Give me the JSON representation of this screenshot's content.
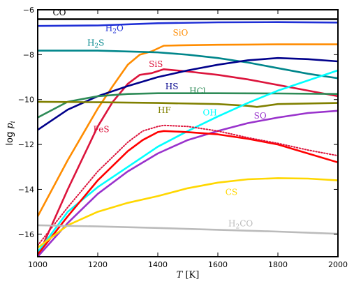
{
  "chart_data": {
    "type": "line",
    "xlabel": "T [K]",
    "ylabel": "log p_i",
    "xlim": [
      1000,
      2000
    ],
    "ylim": [
      -17,
      -6
    ],
    "grid": false,
    "x_ticks": [
      "1000",
      "1200",
      "1400",
      "1600",
      "1800",
      "2000"
    ],
    "y_ticks": [
      "−16",
      "−14",
      "−12",
      "−10",
      "−8",
      "−6"
    ],
    "series": [
      {
        "name": "CO",
        "color": "#000000",
        "style": "solid",
        "x": [
          1000,
          2000
        ],
        "values": [
          -6.42,
          -6.42
        ]
      },
      {
        "name": "H2O",
        "color": "#1f2fd6",
        "style": "solid",
        "x": [
          1000,
          1200,
          1400,
          1600,
          1800,
          2000
        ],
        "values": [
          -6.72,
          -6.7,
          -6.6,
          -6.56,
          -6.55,
          -6.57
        ]
      },
      {
        "name": "SiO",
        "color": "#ff8c00",
        "style": "solid",
        "x": [
          1000,
          1100,
          1200,
          1250,
          1300,
          1340,
          1380,
          1420,
          1500,
          1600,
          1700,
          1800,
          1900,
          2000
        ],
        "values": [
          -15.2,
          -12.7,
          -10.4,
          -9.4,
          -8.45,
          -8.0,
          -7.85,
          -7.6,
          -7.58,
          -7.56,
          -7.55,
          -7.54,
          -7.54,
          -7.54
        ]
      },
      {
        "name": "H2S",
        "color": "#00868b",
        "style": "solid",
        "x": [
          1000,
          1200,
          1400,
          1500,
          1600,
          1700,
          1800,
          1900,
          2000
        ],
        "values": [
          -7.82,
          -7.82,
          -7.9,
          -8.0,
          -8.15,
          -8.35,
          -8.6,
          -8.85,
          -9.05
        ]
      },
      {
        "name": "SiS",
        "color": "#dc143c",
        "style": "solid",
        "x": [
          1000,
          1100,
          1200,
          1250,
          1300,
          1340,
          1380,
          1420,
          1500,
          1600,
          1700,
          1800,
          1900,
          2000
        ],
        "values": [
          -17.0,
          -14.0,
          -11.2,
          -10.1,
          -9.3,
          -8.9,
          -8.82,
          -8.65,
          -8.75,
          -8.9,
          -9.1,
          -9.35,
          -9.6,
          -9.85
        ]
      },
      {
        "name": "HS",
        "color": "#00008b",
        "style": "solid",
        "x": [
          1000,
          1100,
          1200,
          1300,
          1400,
          1500,
          1600,
          1700,
          1800,
          1900,
          2000
        ],
        "values": [
          -11.35,
          -10.45,
          -9.85,
          -9.4,
          -9.0,
          -8.7,
          -8.45,
          -8.25,
          -8.15,
          -8.2,
          -8.3
        ]
      },
      {
        "name": "HCl",
        "color": "#2e8b57",
        "style": "solid",
        "x": [
          1000,
          1100,
          1200,
          1300,
          1400,
          1600,
          1800,
          2000
        ],
        "values": [
          -10.8,
          -10.1,
          -9.85,
          -9.75,
          -9.72,
          -9.72,
          -9.73,
          -9.75
        ]
      },
      {
        "name": "HF",
        "color": "#808000",
        "style": "solid",
        "x": [
          1000,
          1200,
          1400,
          1600,
          1700,
          1730,
          1800,
          2000
        ],
        "values": [
          -10.1,
          -10.12,
          -10.15,
          -10.2,
          -10.28,
          -10.33,
          -10.2,
          -10.15
        ]
      },
      {
        "name": "OH",
        "color": "#00ffff",
        "style": "solid",
        "x": [
          1000,
          1100,
          1200,
          1300,
          1400,
          1500,
          1600,
          1700,
          1800,
          1900,
          2000
        ],
        "values": [
          -16.8,
          -15.0,
          -13.9,
          -13.0,
          -12.1,
          -11.4,
          -10.75,
          -10.15,
          -9.6,
          -9.15,
          -8.7
        ]
      },
      {
        "name": "SO",
        "color": "#9932cc",
        "style": "solid",
        "x": [
          1000,
          1100,
          1200,
          1300,
          1400,
          1500,
          1600,
          1700,
          1800,
          1900,
          2000
        ],
        "values": [
          -17.0,
          -15.5,
          -14.2,
          -13.2,
          -12.4,
          -11.8,
          -11.4,
          -11.05,
          -10.8,
          -10.6,
          -10.5
        ]
      },
      {
        "name": "FeS",
        "color": "#ff0000",
        "style": "solid",
        "x": [
          1000,
          1100,
          1200,
          1300,
          1350,
          1400,
          1420,
          1500,
          1600,
          1700,
          1800,
          1900,
          2000
        ],
        "values": [
          -16.9,
          -15.2,
          -13.6,
          -12.3,
          -11.8,
          -11.45,
          -11.4,
          -11.45,
          -11.55,
          -11.75,
          -12.0,
          -12.4,
          -12.8
        ]
      },
      {
        "name": "FeS (dotted)",
        "color": "#dc143c",
        "style": "dotted",
        "x": [
          1000,
          1100,
          1200,
          1300,
          1350,
          1400,
          1420,
          1500,
          1600,
          1700,
          1800,
          1900,
          2000
        ],
        "values": [
          -16.5,
          -14.8,
          -13.2,
          -11.9,
          -11.4,
          -11.2,
          -11.15,
          -11.2,
          -11.4,
          -11.7,
          -11.95,
          -12.25,
          -12.5
        ]
      },
      {
        "name": "CS",
        "color": "#ffd700",
        "style": "solid",
        "x": [
          1000,
          1100,
          1200,
          1300,
          1400,
          1500,
          1600,
          1700,
          1800,
          1900,
          2000
        ],
        "values": [
          -16.6,
          -15.6,
          -15.0,
          -14.6,
          -14.3,
          -13.95,
          -13.7,
          -13.55,
          -13.5,
          -13.52,
          -13.6
        ]
      },
      {
        "name": "H2CO",
        "color": "#bbbbbb",
        "style": "solid",
        "x": [
          1000,
          1200,
          1400,
          1600,
          1800,
          2000
        ],
        "values": [
          -15.6,
          -15.65,
          -15.72,
          -15.8,
          -15.88,
          -15.98
        ]
      }
    ],
    "annotations": [
      {
        "text": "CO",
        "color": "#000000",
        "x": 1050,
        "y": -6.25
      },
      {
        "text": "H2O",
        "color": "#1f2fd6",
        "x": 1225,
        "y": -6.95
      },
      {
        "text": "SiO",
        "color": "#ff8c00",
        "x": 1450,
        "y": -7.15
      },
      {
        "text": "H2S",
        "color": "#00868b",
        "x": 1165,
        "y": -7.6
      },
      {
        "text": "SiS",
        "color": "#dc143c",
        "x": 1370,
        "y": -8.55
      },
      {
        "text": "HS",
        "color": "#00008b",
        "x": 1425,
        "y": -9.55
      },
      {
        "text": "HCl",
        "color": "#2e8b57",
        "x": 1505,
        "y": -9.75
      },
      {
        "text": "HF",
        "color": "#808000",
        "x": 1400,
        "y": -10.6
      },
      {
        "text": "OH",
        "color": "#00ffff",
        "x": 1550,
        "y": -10.7
      },
      {
        "text": "SO",
        "color": "#9932cc",
        "x": 1720,
        "y": -10.85
      },
      {
        "text": "FeS",
        "color": "#dc143c",
        "x": 1185,
        "y": -11.45
      },
      {
        "text": "CS",
        "color": "#ffd700",
        "x": 1625,
        "y": -14.25
      },
      {
        "text": "H2CO",
        "color": "#bbbbbb",
        "x": 1635,
        "y": -15.65
      }
    ]
  }
}
